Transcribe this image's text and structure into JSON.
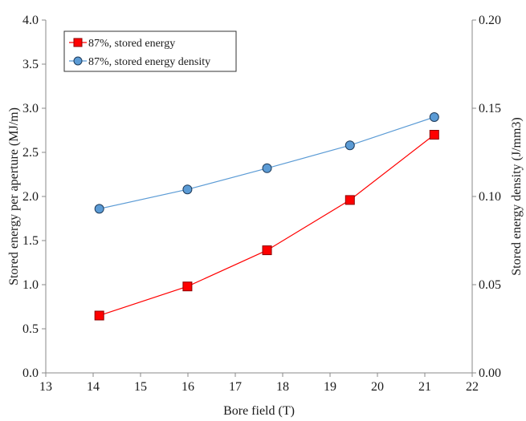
{
  "chart_data": {
    "type": "line",
    "xlabel": "Bore field (T)",
    "ylabel_left": "Stored energy per aperture (MJ/m)",
    "ylabel_right": "Stored energy density (J/mm3)",
    "xlim": [
      13,
      22
    ],
    "ylim_left": [
      0,
      4
    ],
    "ylim_right": [
      0,
      0.2
    ],
    "x_ticks": [
      13,
      14,
      15,
      16,
      17,
      18,
      19,
      20,
      21,
      22
    ],
    "y_left_ticks": [
      "0.0",
      "0.5",
      "1.0",
      "1.5",
      "2.0",
      "2.5",
      "3.0",
      "3.5",
      "4.0"
    ],
    "y_right_ticks": [
      "0.00",
      "0.05",
      "0.10",
      "0.15",
      "0.20"
    ],
    "grid": false,
    "legend_position": "top-left",
    "series": [
      {
        "name": "87%, stored energy",
        "axis": "left",
        "marker": "square",
        "color": "#ff0000",
        "line_color": "#ff0000",
        "x": [
          14.13,
          15.99,
          17.67,
          19.42,
          21.2
        ],
        "y": [
          0.65,
          0.98,
          1.39,
          1.96,
          2.7
        ]
      },
      {
        "name": "87%, stored energy density",
        "axis": "right",
        "marker": "circle",
        "color": "#5b9bd5",
        "line_color": "#5b9bd5",
        "x": [
          14.13,
          15.99,
          17.67,
          19.42,
          21.2
        ],
        "y": [
          0.093,
          0.104,
          0.116,
          0.129,
          0.145
        ]
      }
    ]
  }
}
